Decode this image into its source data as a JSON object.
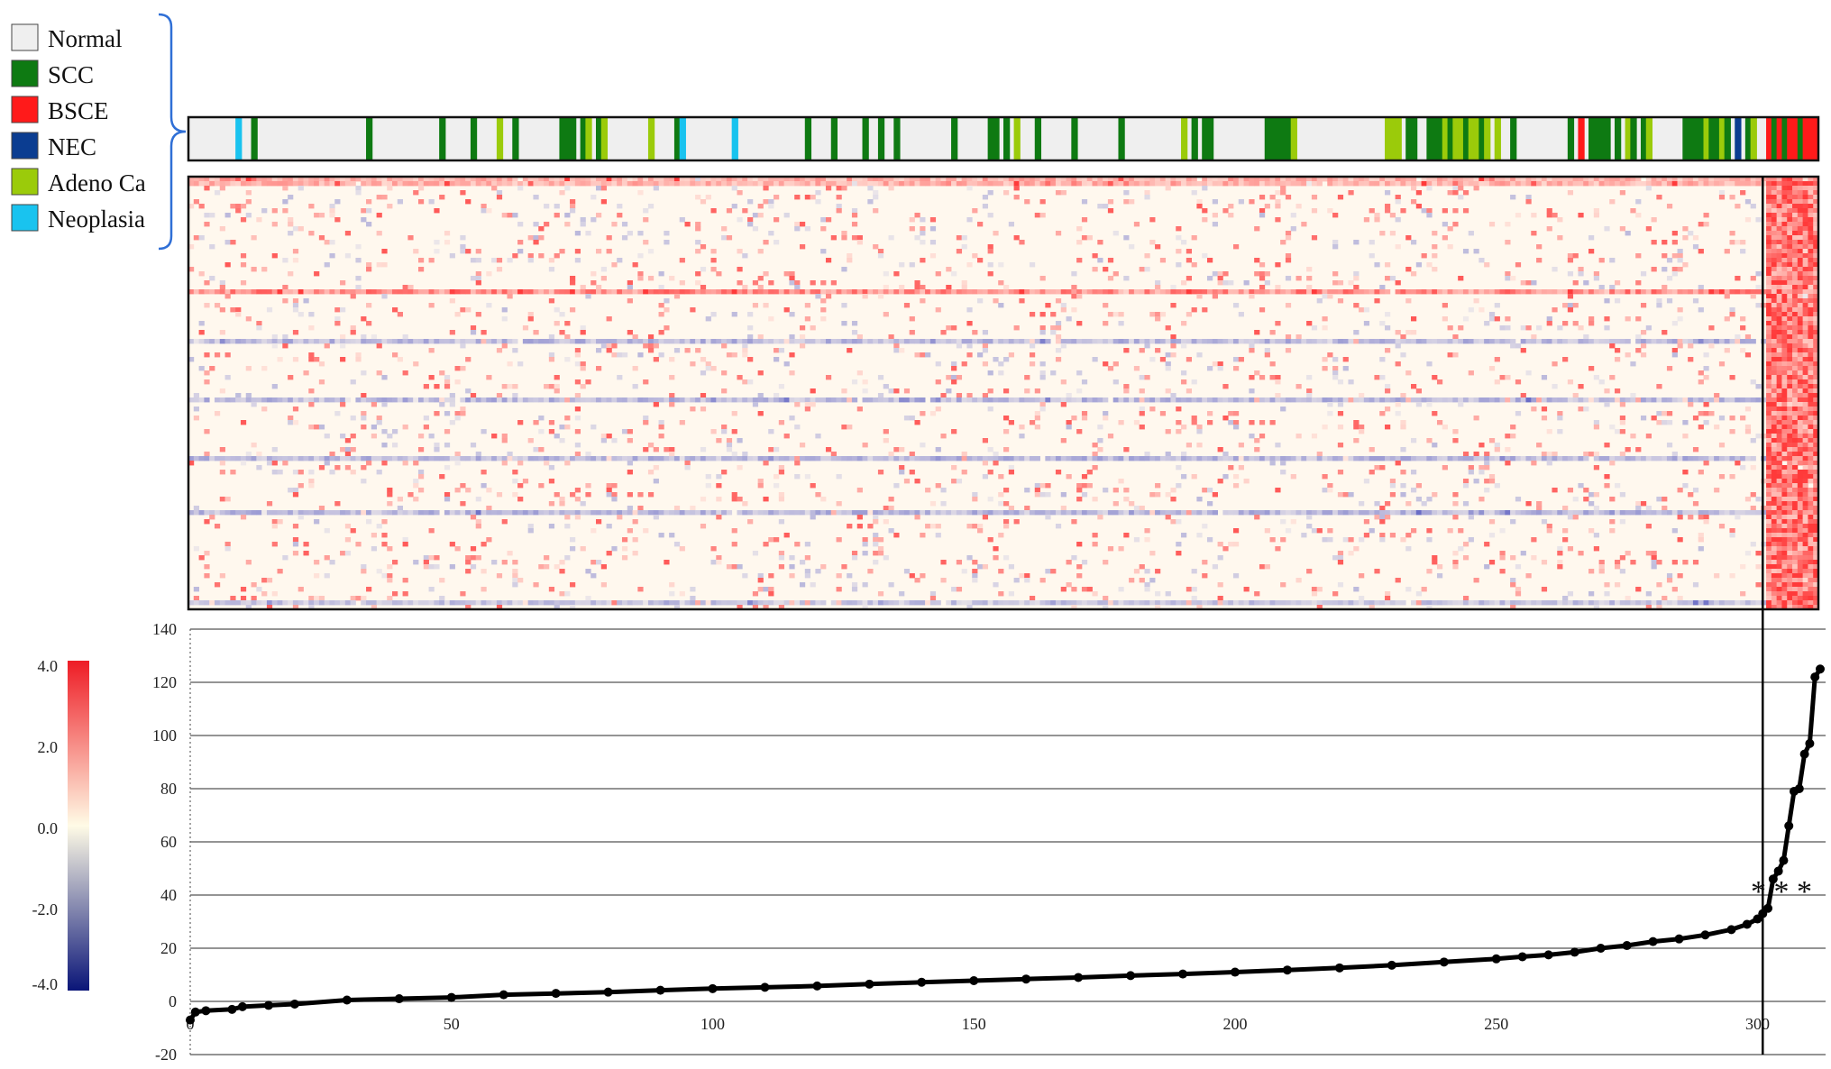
{
  "legend": {
    "items": [
      {
        "label": "Normal",
        "color": "#efefef"
      },
      {
        "label": "SCC",
        "color": "#0e7a12"
      },
      {
        "label": "BSCE",
        "color": "#ff1a1a"
      },
      {
        "label": "NEC",
        "color": "#0b3d91"
      },
      {
        "label": "Adeno Ca",
        "color": "#9bcb0a"
      },
      {
        "label": "Neoplasia",
        "color": "#19c3ef"
      }
    ]
  },
  "colorbar": {
    "ticks": [
      "4.0",
      "2.0",
      "0.0",
      "-2.0",
      "-4.0"
    ],
    "min": -4.0,
    "max": 4.0,
    "high_color": "#ee1c25",
    "mid_color": "#fffbe6",
    "low_color": "#0a1578"
  },
  "annotation": {
    "asterisks": "* * *"
  },
  "chart_data": {
    "type": "line",
    "title": "",
    "xlabel": "",
    "ylabel": "",
    "x_ticks": [
      "0",
      "50",
      "100",
      "150",
      "200",
      "250",
      "300"
    ],
    "y_ticks": [
      "140",
      "120",
      "100",
      "80",
      "60",
      "40",
      "20",
      "0",
      "-20"
    ],
    "xlim": [
      0,
      312
    ],
    "ylim": [
      -20,
      140
    ],
    "grid": true,
    "cutoff_x": 301,
    "series": [
      {
        "marker": "circle",
        "color": "#000000",
        "points": [
          [
            0,
            -7
          ],
          [
            1,
            -4
          ],
          [
            3,
            -3.5
          ],
          [
            8,
            -3
          ],
          [
            10,
            -2
          ],
          [
            15,
            -1.5
          ],
          [
            20,
            -1
          ],
          [
            30,
            0.5
          ],
          [
            40,
            1
          ],
          [
            50,
            1.5
          ],
          [
            60,
            2.5
          ],
          [
            70,
            3
          ],
          [
            80,
            3.5
          ],
          [
            90,
            4.2
          ],
          [
            100,
            4.8
          ],
          [
            110,
            5.3
          ],
          [
            120,
            5.8
          ],
          [
            130,
            6.5
          ],
          [
            140,
            7.2
          ],
          [
            150,
            7.8
          ],
          [
            160,
            8.4
          ],
          [
            170,
            9
          ],
          [
            180,
            9.7
          ],
          [
            190,
            10.3
          ],
          [
            200,
            11
          ],
          [
            210,
            11.8
          ],
          [
            220,
            12.6
          ],
          [
            230,
            13.6
          ],
          [
            240,
            14.8
          ],
          [
            250,
            16
          ],
          [
            255,
            16.8
          ],
          [
            260,
            17.5
          ],
          [
            265,
            18.5
          ],
          [
            270,
            20
          ],
          [
            275,
            21
          ],
          [
            280,
            22.5
          ],
          [
            285,
            23.5
          ],
          [
            290,
            25
          ],
          [
            295,
            27
          ],
          [
            298,
            29
          ],
          [
            300,
            31
          ],
          [
            301,
            33
          ],
          [
            302,
            35
          ],
          [
            303,
            46
          ],
          [
            304,
            49
          ],
          [
            305,
            53
          ],
          [
            306,
            66
          ],
          [
            307,
            79
          ],
          [
            308,
            80
          ],
          [
            309,
            93
          ],
          [
            310,
            97
          ],
          [
            311,
            122
          ],
          [
            312,
            125
          ]
        ]
      }
    ]
  }
}
